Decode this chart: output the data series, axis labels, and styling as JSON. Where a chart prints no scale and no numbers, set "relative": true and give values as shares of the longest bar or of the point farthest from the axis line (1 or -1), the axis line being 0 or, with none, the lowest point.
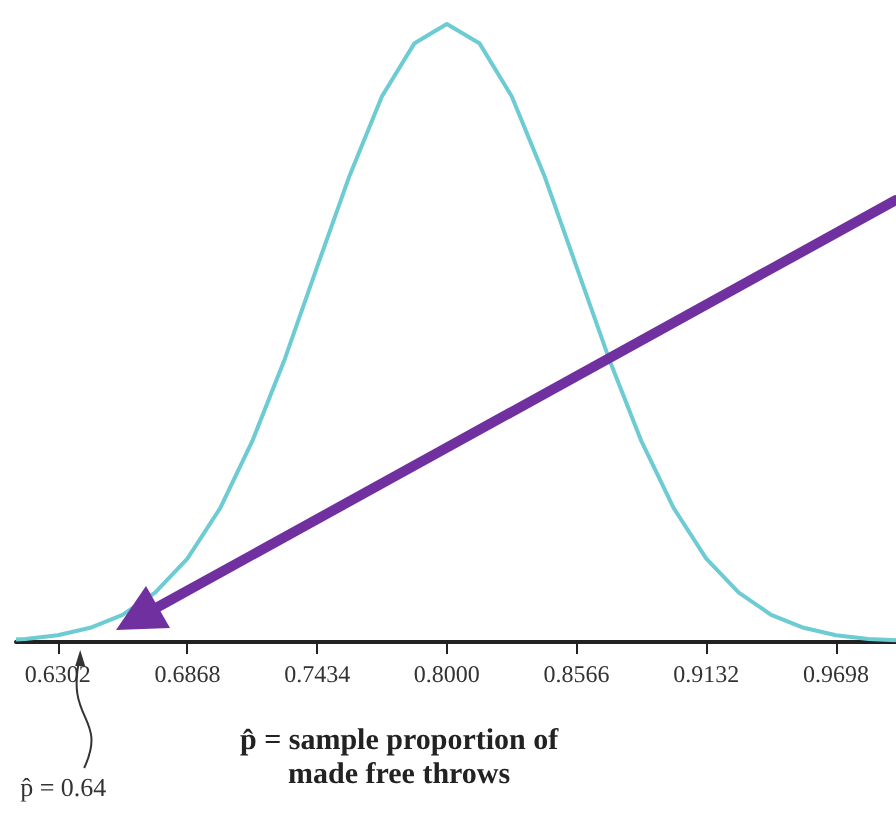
{
  "chart_data": {
    "type": "line",
    "xlabel": "p̂ = sample proportion of\nmade free throws",
    "relative": true,
    "color": "#6ccbd3",
    "marker": "none",
    "x": [
      0.612,
      0.6161,
      0.6302,
      0.6444,
      0.6585,
      0.6727,
      0.6868,
      0.701,
      0.7151,
      0.7293,
      0.7434,
      0.7576,
      0.7717,
      0.7859,
      0.8,
      0.8142,
      0.8283,
      0.8425,
      0.8566,
      0.8708,
      0.8849,
      0.8991,
      0.9132,
      0.9274,
      0.9415,
      0.9557,
      0.9698,
      0.984,
      0.996
    ],
    "values": [
      0.004,
      0.005,
      0.011,
      0.023,
      0.044,
      0.08,
      0.135,
      0.216,
      0.325,
      0.458,
      0.607,
      0.755,
      0.883,
      0.969,
      1,
      0.969,
      0.883,
      0.755,
      0.607,
      0.458,
      0.325,
      0.216,
      0.135,
      0.08,
      0.044,
      0.023,
      0.011,
      0.005,
      0.003
    ],
    "xlim": [
      0.612,
      0.996
    ],
    "xticks": [
      0.6302,
      0.6868,
      0.7434,
      {
        "value": 0.8,
        "label": "0.8000"
      },
      0.8566,
      0.9132,
      0.9698
    ],
    "annotations": [
      {
        "text": "p̂ = 0.64",
        "x": 0.64,
        "y": 0
      }
    ]
  }
}
